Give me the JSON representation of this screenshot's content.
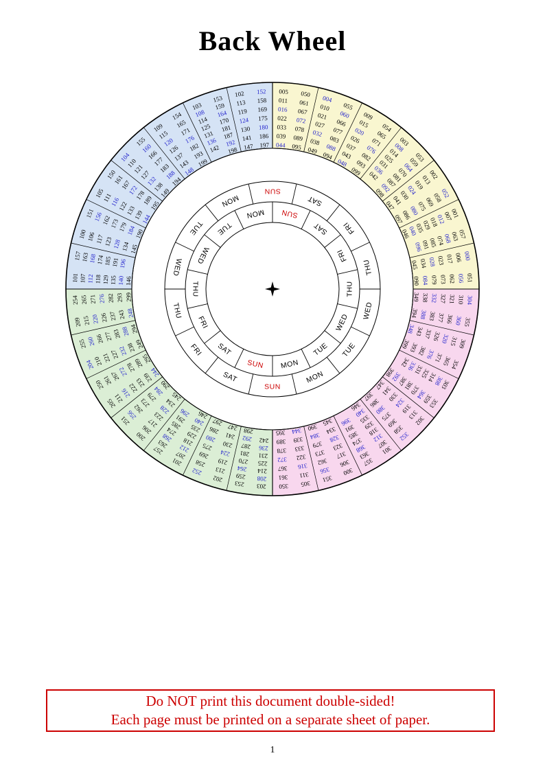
{
  "title": "Back Wheel",
  "page_number": "1",
  "warning": {
    "line1": "Do NOT print this document double-sided!",
    "line2": "Each page must be printed on a separate sheet of paper."
  },
  "colors": {
    "red": "#cc0000",
    "leap_year": "#2222cc",
    "year": "#000000",
    "day": "#000000",
    "sunday": "#cc0000",
    "stroke": "#000000",
    "paper": "#ffffff"
  },
  "wheel": {
    "center_icon": "four-pointed-star",
    "groups": {
      "g0": [
        0,
        6,
        17,
        23,
        28,
        34,
        45,
        51,
        56,
        62,
        73,
        79,
        84,
        90
      ],
      "g1": [
        1,
        7,
        12,
        18,
        29,
        35,
        40,
        46,
        57,
        63,
        68,
        74,
        85,
        91,
        96
      ],
      "g2": [
        2,
        13,
        19,
        24,
        30,
        41,
        47,
        52,
        58,
        69,
        75,
        80,
        86,
        97
      ],
      "g3": [
        3,
        8,
        14,
        25,
        31,
        36,
        42,
        53,
        59,
        64,
        70,
        81,
        87,
        92,
        98
      ],
      "g4": [
        9,
        15,
        20,
        26,
        37,
        43,
        48,
        54,
        65,
        71,
        76,
        82,
        93,
        99
      ],
      "g5": [
        4,
        10,
        21,
        27,
        32,
        38,
        49,
        55,
        60,
        66,
        77,
        83,
        88,
        94
      ],
      "g6": [
        5,
        11,
        16,
        22,
        33,
        39,
        44,
        50,
        61,
        67,
        72,
        78,
        89,
        95
      ]
    },
    "quadrants": [
      {
        "name": "yellow",
        "century": 0,
        "color": "#f9f6d0",
        "start_deg": 0,
        "wedges": [
          "g6",
          "g5",
          "g4",
          "g3",
          "g2",
          "g1",
          "g0"
        ]
      },
      {
        "name": "pink",
        "century": 300,
        "color": "#f8d7ee",
        "start_deg": 90,
        "wedges": [
          "g5",
          "g4",
          "g3",
          "g2",
          "g1",
          "g0",
          "g6"
        ]
      },
      {
        "name": "green",
        "century": 200,
        "color": "#dbeed5",
        "start_deg": 180,
        "wedges": [
          "g3",
          "g2",
          "g1",
          "g0",
          "g6",
          "g5",
          "g4"
        ]
      },
      {
        "name": "blue",
        "century": 100,
        "color": "#d5e3f5",
        "start_deg": 270,
        "wedges": [
          "g1",
          "g0",
          "g6",
          "g5",
          "g4",
          "g3",
          "g2"
        ]
      }
    ],
    "day_rings": [
      {
        "name": "outer",
        "offset_deg": -12.857,
        "cells": [
          "SUN",
          "SAT",
          "FRI",
          "THU",
          "WED",
          "TUE",
          "MON",
          "SUN",
          "SAT",
          "FRI",
          "THU",
          "WED",
          "TUE",
          "MON"
        ]
      },
      {
        "name": "inner",
        "offset_deg": 0,
        "cells": [
          "SUN",
          "SAT",
          "FRI",
          "THU",
          "WED",
          "TUE",
          "MON",
          "SUN",
          "SAT",
          "FRI",
          "THU",
          "WED",
          "TUE",
          "MON"
        ]
      }
    ]
  }
}
